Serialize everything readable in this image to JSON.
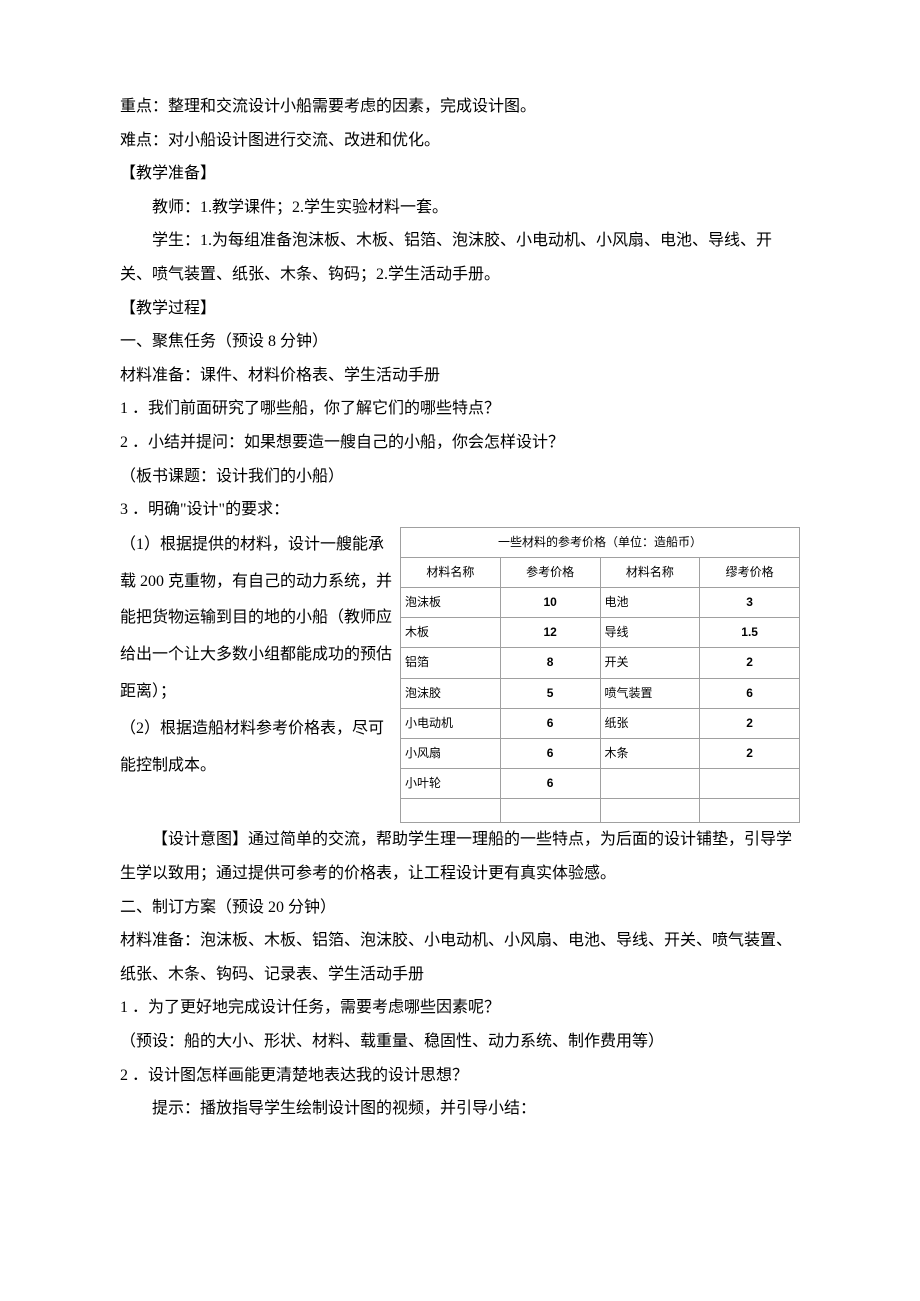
{
  "top": {
    "focus": "重点：整理和交流设计小船需要考虑的因素，完成设计图。",
    "difficulty": "难点：对小船设计图进行交流、改进和优化。"
  },
  "prep": {
    "heading": "【教学准备】",
    "teacher": "教师：1.教学课件；2.学生实验材料一套。",
    "student": "学生：1.为每组准备泡沫板、木板、铝箔、泡沫胶、小电动机、小风扇、电池、导线、开关、喷气装置、纸张、木条、钩码；2.学生活动手册。"
  },
  "process": {
    "heading": "【教学过程】"
  },
  "sec1": {
    "title": "一、聚焦任务（预设 8 分钟）",
    "materials": "材料准备：课件、材料价格表、学生活动手册",
    "q1": "1 ．我们前面研究了哪些船，你了解它们的哪些特点？",
    "q2": "2 ．小结并提问：如果想要造一艘自己的小船，你会怎样设计？",
    "board": "（板书课题：设计我们的小船）",
    "q3": "3 ．明确\"设计\"的要求：",
    "req1": "（1）根据提供的材料，设计一艘能承载 200 克重物，有自己的动力系统，并能把货物运输到目的地的小船（教师应给出一个让大多数小组都能成功的预估距离）；",
    "req2": "（2）根据造船材料参考价格表，尽可能控制成本。",
    "intent": "【设计意图】通过简单的交流，帮助学生理一理船的一些特点，为后面的设计铺垫，引导学生学以致用；通过提供可参考的价格表，让工程设计更有真实体验感。"
  },
  "table": {
    "title": "一些材料的参考价格（单位：造船币）",
    "header": [
      "材料名称",
      "参考价格",
      "材料名称",
      "缪考价格"
    ],
    "rows": [
      [
        "泡沫板",
        "10",
        "电池",
        "3"
      ],
      [
        "木板",
        "12",
        "导线",
        "1.5"
      ],
      [
        "铝箔",
        "8",
        "开关",
        "2"
      ],
      [
        "泡沫胶",
        "5",
        "喷气装置",
        "6"
      ],
      [
        "小电动机",
        "6",
        "纸张",
        "2"
      ],
      [
        "小风扇",
        "6",
        "木条",
        "2"
      ],
      [
        "小叶轮",
        "6",
        "",
        ""
      ],
      [
        "",
        "",
        "",
        ""
      ]
    ]
  },
  "sec2": {
    "title": "二、制订方案（预设 20 分钟）",
    "materials": "材料准备：泡沫板、木板、铝箔、泡沫胶、小电动机、小风扇、电池、导线、开关、喷气装置、纸张、木条、钩码、记录表、学生活动手册",
    "q1": "1 ．为了更好地完成设计任务，需要考虑哪些因素呢？",
    "preset": "（预设：船的大小、形状、材料、载重量、稳固性、动力系统、制作费用等）",
    "q2": "2 ．设计图怎样画能更清楚地表达我的设计思想？",
    "hint": "提示：播放指导学生绘制设计图的视频，并引导小结："
  }
}
